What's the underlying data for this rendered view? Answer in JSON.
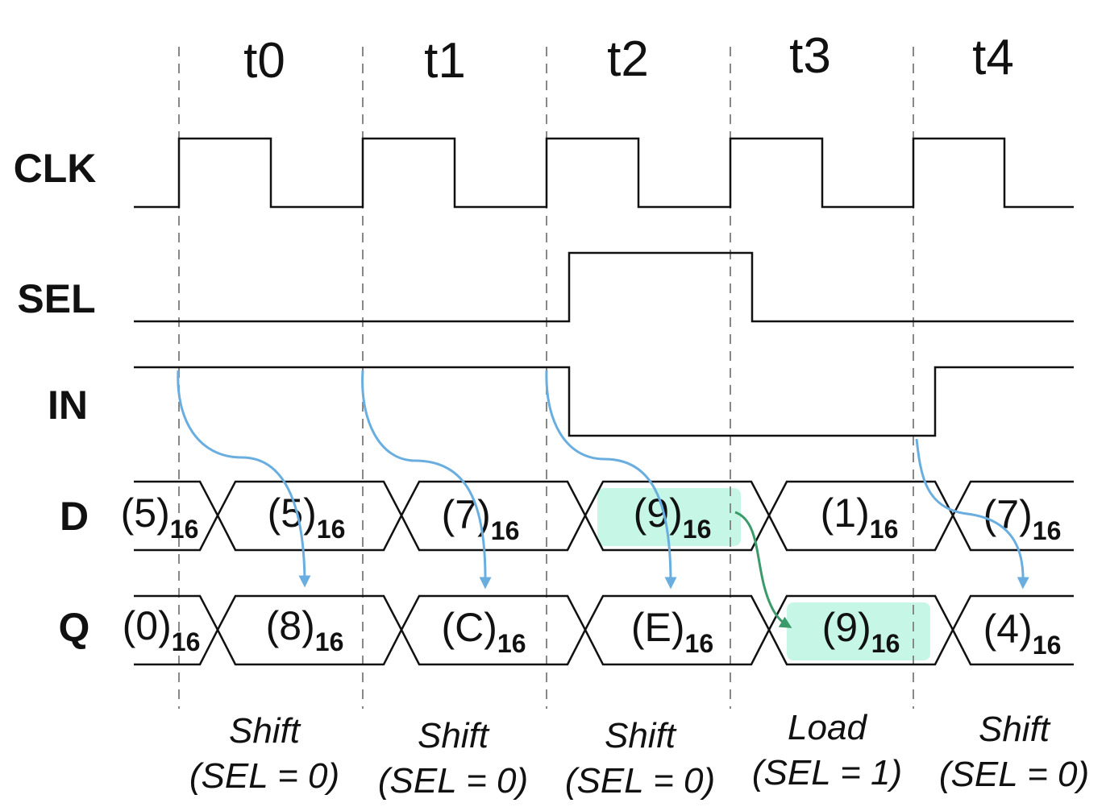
{
  "time_labels": [
    "t0",
    "t1",
    "t2",
    "t3",
    "t4"
  ],
  "signals": {
    "clk": "CLK",
    "sel": "SEL",
    "in": "IN",
    "d": "D",
    "q": "Q"
  },
  "radix": "16",
  "d_values": [
    "5",
    "5",
    "7",
    "9",
    "1",
    "7"
  ],
  "q_values": [
    "0",
    "8",
    "C",
    "E",
    "9",
    "4"
  ],
  "operations": [
    {
      "name": "Shift",
      "sel": "(SEL = 0)"
    },
    {
      "name": "Shift",
      "sel": "(SEL = 0)"
    },
    {
      "name": "Shift",
      "sel": "(SEL = 0)"
    },
    {
      "name": "Load",
      "sel": "(SEL = 1)"
    },
    {
      "name": "Shift",
      "sel": "(SEL = 0)"
    }
  ],
  "colors": {
    "shift_arrow": "#6aaee0",
    "load_arrow": "#3a9a6a",
    "highlight": "#c6f7e6"
  }
}
